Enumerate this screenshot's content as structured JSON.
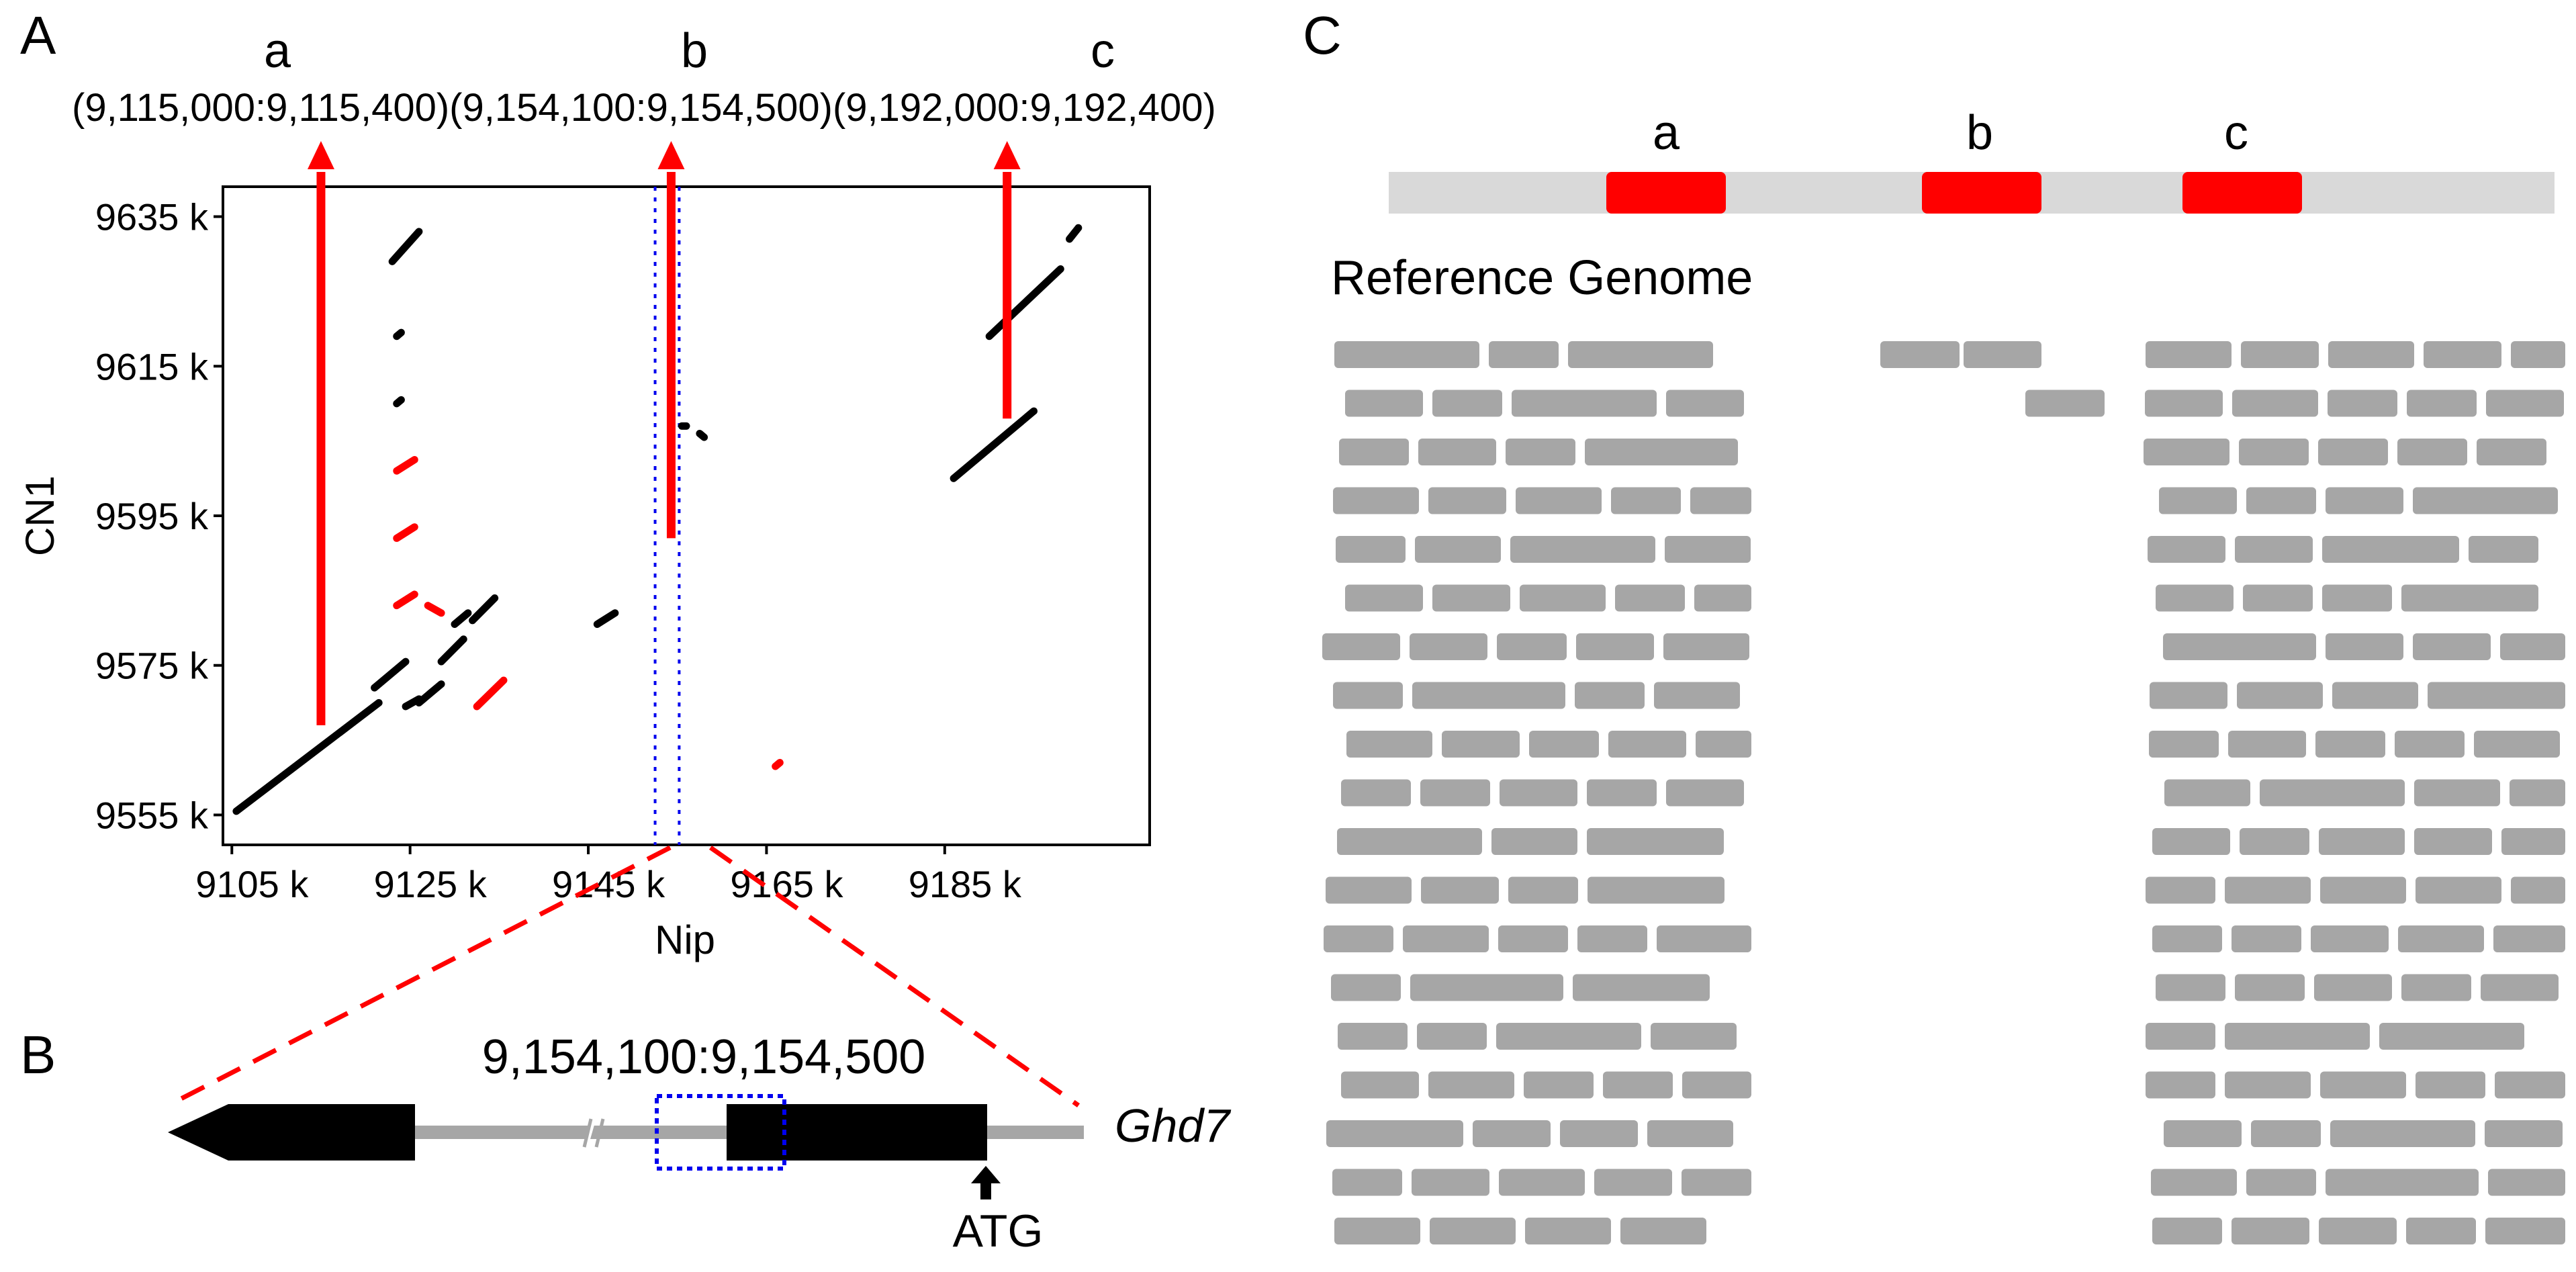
{
  "colors": {
    "highlight": "#ff0000",
    "black": "#000000",
    "gray_read": "#a6a6a6",
    "gray_bar": "#d9d9d9",
    "gray_intron": "#a6a6a6",
    "blue_box": "#0000ee"
  },
  "panel_a": {
    "letter": "A",
    "markers": [
      {
        "label": "a",
        "range": "(9,115,000:9,115,400)",
        "x_k": 9115,
        "y_top_k": 9635,
        "y_bottom_k": 9567
      },
      {
        "label": "b",
        "range": "(9,154,100:9,154,500)",
        "x_k": 9154.3,
        "y_top_k": 9635,
        "y_bottom_k": 9592
      },
      {
        "label": "c",
        "range": "(9,192,000:9,192,400)",
        "x_k": 9192,
        "y_top_k": 9635,
        "y_bottom_k": 9608
      }
    ],
    "coords_line": "(9,115,000:9,115,400)(9,154,100:9,154,500)(9,192,000:9,192,400)"
  },
  "chart_data": {
    "type": "scatter",
    "title": "",
    "xlabel": "Nip",
    "ylabel": "CN1",
    "xlim": [
      9104,
      9208
    ],
    "ylim": [
      9551,
      9639
    ],
    "x_ticks": [
      9105,
      9125,
      9145,
      9165,
      9185
    ],
    "x_tick_labels": [
      "9105 k",
      "9125 k",
      "9145 k",
      "9165 k",
      "9185 k"
    ],
    "y_ticks": [
      9555,
      9575,
      9595,
      9615,
      9635
    ],
    "y_tick_labels": [
      "9555 k",
      "9575 k",
      "9595 k",
      "9615 k",
      "9635 k"
    ],
    "highlight_line_x": [
      9152.5,
      9155.2
    ],
    "segments_black": [
      [
        9105.5,
        9555.5,
        9121.5,
        9570
      ],
      [
        9121,
        9572,
        9124.5,
        9575.5
      ],
      [
        9124.5,
        9569.5,
        9126,
        9570.5
      ],
      [
        9126,
        9570,
        9128.5,
        9572.5
      ],
      [
        9128.5,
        9575.5,
        9131,
        9578.5
      ],
      [
        9130,
        9580.5,
        9131.5,
        9582
      ],
      [
        9132,
        9581,
        9134.5,
        9584
      ],
      [
        9146,
        9580.5,
        9148,
        9582
      ],
      [
        9123,
        9629,
        9126,
        9633
      ],
      [
        9123.5,
        9619,
        9124,
        9619.5
      ],
      [
        9123.5,
        9610,
        9124,
        9610.5
      ],
      [
        9155.5,
        9607,
        9156,
        9607
      ],
      [
        9157.5,
        9606,
        9158,
        9605.5
      ],
      [
        9186,
        9600,
        9195,
        9609
      ],
      [
        9190,
        9619,
        9198,
        9628
      ],
      [
        9199,
        9632,
        9200,
        9633.5
      ]
    ],
    "segments_red": [
      [
        9123.5,
        9601,
        9125.5,
        9602.5
      ],
      [
        9123.5,
        9592,
        9125.5,
        9593.5
      ],
      [
        9123.5,
        9583,
        9125.5,
        9584.5
      ],
      [
        9127,
        9583,
        9128.5,
        9582
      ],
      [
        9132.5,
        9569.5,
        9135.5,
        9573
      ],
      [
        9166,
        9561.5,
        9166.5,
        9562
      ]
    ]
  },
  "panel_b": {
    "letter": "B",
    "region": "9,154,100:9,154,500",
    "gene": "Ghd7",
    "atg": "ATG"
  },
  "panel_c": {
    "letter": "C",
    "labels": [
      "a",
      "b",
      "c"
    ],
    "title": "Reference Genome",
    "read_groups": [
      {
        "name": "a",
        "rows": 19
      },
      {
        "name": "b",
        "rows": 2
      },
      {
        "name": "c",
        "rows": 19
      }
    ]
  }
}
